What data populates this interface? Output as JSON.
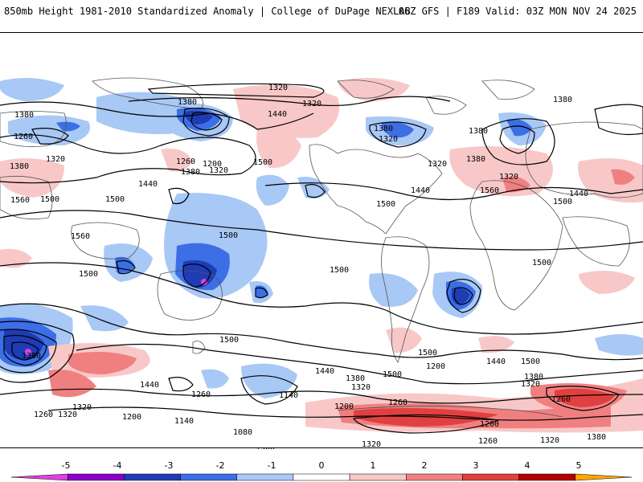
{
  "header": {
    "left_title": "850mb Height 1981-2010 Standardized Anomaly | College of DuPage NEXLAB",
    "right_title": "06Z GFS | F189 Valid: 03Z MON NOV 24 2025"
  },
  "colorbar": {
    "labels": [
      "-5",
      "-4",
      "-3",
      "-2",
      "-1",
      "0",
      "1",
      "2",
      "3",
      "4",
      "5"
    ],
    "colors": [
      "#e040e0",
      "#8a00c8",
      "#1e3cb4",
      "#3c6ee6",
      "#a8c8f5",
      "#ffffff",
      "#f8c8c8",
      "#f08080",
      "#e04040",
      "#b40000",
      "#ffa500"
    ]
  },
  "contours": {
    "labels": [
      "1320",
      "1380",
      "1320",
      "1380",
      "1260",
      "1320",
      "1380",
      "1440",
      "1260",
      "1200",
      "1380",
      "1320",
      "1500",
      "1440",
      "1560",
      "1500",
      "1560",
      "1500",
      "1500",
      "1500",
      "1500",
      "1500",
      "1500",
      "1380",
      "1320",
      "1320",
      "1440",
      "1380",
      "1380",
      "1380",
      "1320",
      "1560",
      "1500",
      "1440",
      "1500",
      "1440",
      "1500",
      "1380",
      "1320",
      "1440",
      "1380",
      "1320",
      "1260",
      "1140",
      "1200",
      "1260",
      "1440",
      "1380",
      "1320",
      "1320",
      "1260",
      "1200",
      "1200",
      "1140",
      "1080",
      "1200",
      "1260",
      "1320",
      "1320",
      "1260",
      "1200",
      "1320",
      "1380",
      "1500",
      "1260",
      "1320",
      "1500"
    ]
  }
}
